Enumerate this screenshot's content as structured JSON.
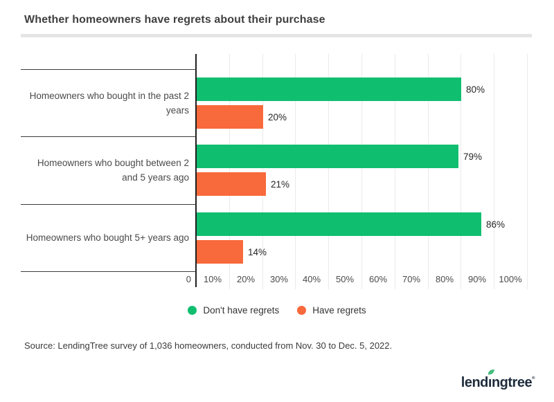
{
  "header": {
    "title": "Whether homeowners have regrets about their purchase"
  },
  "chart_data": {
    "type": "bar",
    "orientation": "horizontal",
    "title": "Whether homeowners have regrets about their purchase",
    "categories": [
      "Homeowners who bought in the past 2 years",
      "Homeowners who bought between 2 and 5 years ago",
      "Homeowners who bought 5+ years ago"
    ],
    "series": [
      {
        "name": "Don't have regrets",
        "color": "#10BE70",
        "values": [
          80,
          79,
          86
        ],
        "labels": [
          "80%",
          "79%",
          "86%"
        ]
      },
      {
        "name": "Have regrets",
        "color": "#F8693B",
        "values": [
          20,
          21,
          14
        ],
        "labels": [
          "20%",
          "21%",
          "14%"
        ]
      }
    ],
    "value_suffix": "%",
    "xlim": [
      0,
      100
    ],
    "x_ticks": [
      "0",
      "10%",
      "20%",
      "30%",
      "40%",
      "50%",
      "60%",
      "70%",
      "80%",
      "90%",
      "100%"
    ],
    "grid": "vertical-only",
    "legend_position": "bottom-center"
  },
  "legend": {
    "items": [
      {
        "label": "Don't have regrets",
        "color": "#10BE70"
      },
      {
        "label": "Have regrets",
        "color": "#F8693B"
      }
    ]
  },
  "footer": {
    "source": "Source: LendingTree survey of 1,036 homeowners, conducted from Nov. 30 to Dec. 5, 2022."
  },
  "logo": {
    "text": "lendingtree",
    "text_before_leaf": "lend",
    "leaf_letter": "ı",
    "text_after_leaf": "ngtree",
    "mark": "®"
  },
  "colors": {
    "green": "#10BE70",
    "orange": "#F8693B",
    "logo_navy": "#1E2C3C",
    "leaf_green": "#2DB56E",
    "gridline": "#EAEAEA",
    "axis": "#1F1F1F"
  }
}
